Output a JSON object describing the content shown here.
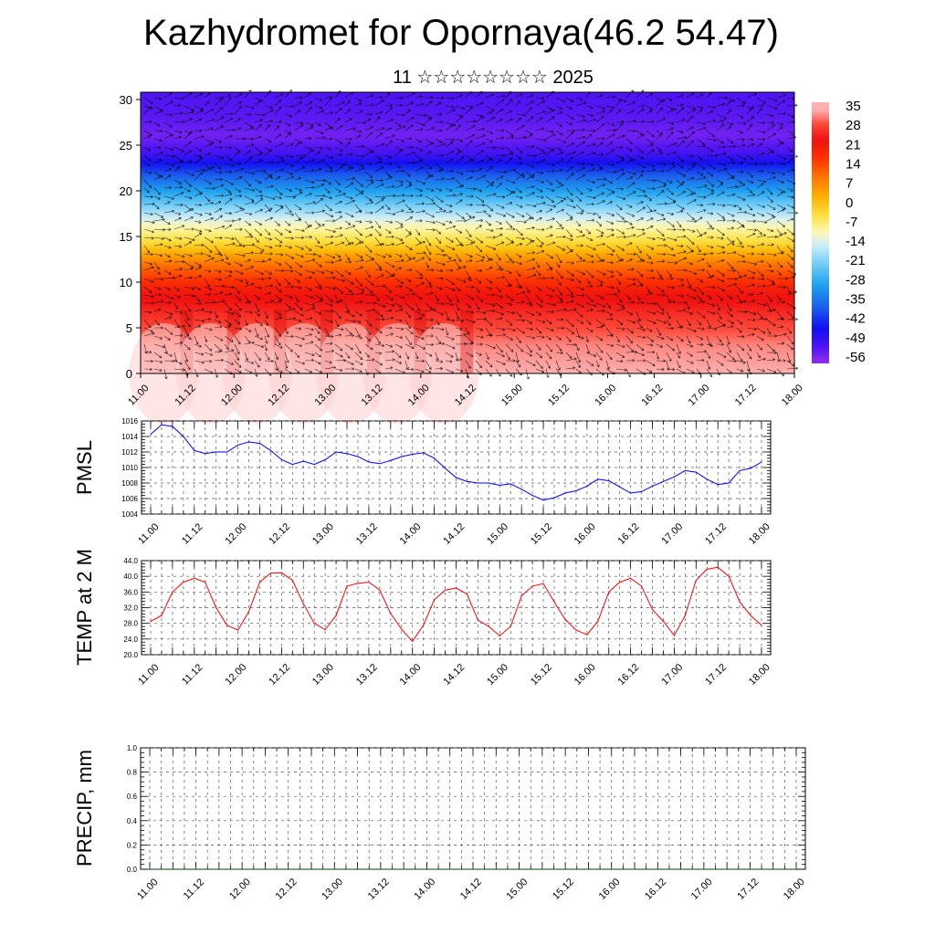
{
  "header": {
    "title": "Kazhydromet for Opornaya(46.2 54.47)",
    "subtitle": "11 ☆☆☆☆☆☆☆☆ 2025"
  },
  "colors": {
    "pmsl_line": "#0000ff",
    "temp_line": "#ff0000",
    "axis": "#000000"
  },
  "chart_data": [
    {
      "id": "cross-section",
      "type": "heatmap",
      "title": "",
      "x_ticks": [
        "11.00",
        "11.12",
        "12.00",
        "12.12",
        "13.00",
        "13.12",
        "14.00",
        "14.12",
        "15.00",
        "15.12",
        "16.00",
        "16.12",
        "17.00",
        "17.12",
        "18.00"
      ],
      "y_ticks": [
        0,
        5,
        10,
        15,
        20,
        25,
        30
      ],
      "ylim": [
        0,
        30.8
      ],
      "xlim": [
        0,
        14
      ],
      "layers": [
        {
          "z": 0,
          "t": 35
        },
        {
          "z": 3,
          "t": 33
        },
        {
          "z": 6,
          "t": 28
        },
        {
          "z": 9,
          "t": 22
        },
        {
          "z": 12,
          "t": 10
        },
        {
          "z": 14.5,
          "t": -4
        },
        {
          "z": 16.5,
          "t": -12
        },
        {
          "z": 18,
          "t": -20
        },
        {
          "z": 20,
          "t": -30
        },
        {
          "z": 22,
          "t": -40
        },
        {
          "z": 24,
          "t": -52
        },
        {
          "z": 26,
          "t": -56
        },
        {
          "z": 28,
          "t": -54
        },
        {
          "z": 30.8,
          "t": -53
        }
      ],
      "vectors": "wind arrows overlay",
      "colorbar": {
        "labels": [
          "35",
          "28",
          "21",
          "14",
          "7",
          "0",
          "-7",
          "-14",
          "-21",
          "-28",
          "-35",
          "-42",
          "-49",
          "-56"
        ],
        "stops": [
          {
            "v": 35,
            "color": "#ffb0b0"
          },
          {
            "v": 30,
            "color": "#ff4a3a"
          },
          {
            "v": 24,
            "color": "#ee1010"
          },
          {
            "v": 17,
            "color": "#ff3300"
          },
          {
            "v": 10,
            "color": "#ff7700"
          },
          {
            "v": 3,
            "color": "#ffb000"
          },
          {
            "v": -4,
            "color": "#ffe040"
          },
          {
            "v": -10,
            "color": "#fff8b0"
          },
          {
            "v": -15,
            "color": "#cfeefa"
          },
          {
            "v": -22,
            "color": "#73cef7"
          },
          {
            "v": -30,
            "color": "#1ea0ef"
          },
          {
            "v": -38,
            "color": "#1c60ec"
          },
          {
            "v": -46,
            "color": "#1010f0"
          },
          {
            "v": -53,
            "color": "#4d14f2"
          },
          {
            "v": -58,
            "color": "#8d2bf0"
          }
        ]
      }
    },
    {
      "id": "pmsl",
      "type": "line",
      "ylabel": "PMSL",
      "ylim": [
        1004,
        1016
      ],
      "y_ticks": [
        "1004",
        "1006",
        "1008",
        "1010",
        "1012",
        "1014",
        "1016"
      ],
      "x_ticks": [
        "11.00",
        "11.12",
        "12.00",
        "12.12",
        "13.00",
        "13.12",
        "14.00",
        "14.12",
        "15.00",
        "15.12",
        "16.00",
        "16.12",
        "17.00",
        "17.12",
        "18.00"
      ],
      "xlim": [
        0,
        14
      ],
      "series": [
        {
          "x": [
            0,
            0.25,
            0.5,
            0.75,
            1,
            1.25,
            1.5,
            1.75,
            2,
            2.25,
            2.5,
            2.75,
            3,
            3.25,
            3.5,
            3.75,
            4,
            4.25,
            4.5,
            4.75,
            5,
            5.25,
            5.5,
            5.75,
            6,
            6.25,
            6.5,
            6.75,
            7,
            7.25,
            7.5,
            7.75,
            8,
            8.25,
            8.5,
            8.75,
            9,
            9.25,
            9.5,
            9.75,
            10,
            10.25,
            10.5,
            10.75,
            11,
            11.25,
            11.5,
            11.75,
            12,
            12.25,
            12.5,
            12.75,
            13,
            13.25,
            13.5,
            13.75,
            14
          ],
          "values": [
            1014.3,
            1015.5,
            1015.3,
            1014.0,
            1012.2,
            1011.8,
            1012.0,
            1012.0,
            1012.9,
            1013.3,
            1013.1,
            1012.2,
            1011.0,
            1010.4,
            1010.8,
            1010.4,
            1011.0,
            1012.0,
            1011.8,
            1011.4,
            1010.7,
            1010.5,
            1010.9,
            1011.4,
            1011.7,
            1011.9,
            1011.2,
            1009.9,
            1008.7,
            1008.2,
            1008.0,
            1008.0,
            1007.7,
            1007.9,
            1007.2,
            1006.4,
            1005.8,
            1006.1,
            1006.7,
            1007.0,
            1007.6,
            1008.5,
            1008.3,
            1007.5,
            1006.7,
            1006.9,
            1007.6,
            1008.2,
            1008.8,
            1009.6,
            1009.4,
            1008.5,
            1007.8,
            1008.0,
            1009.6,
            1009.9,
            1010.7
          ]
        }
      ]
    },
    {
      "id": "temp2m",
      "type": "line",
      "ylabel": "TEMP at 2 M",
      "ylim": [
        20,
        44
      ],
      "y_ticks": [
        "20.0",
        "24.0",
        "28.0",
        "32.0",
        "36.0",
        "40.0",
        "44.0"
      ],
      "x_ticks": [
        "11.00",
        "11.12",
        "12.00",
        "12.12",
        "13.00",
        "13.12",
        "14.00",
        "14.12",
        "15.00",
        "15.12",
        "16.00",
        "16.12",
        "17.00",
        "17.12",
        "18.00"
      ],
      "xlim": [
        0,
        14
      ],
      "series": [
        {
          "x": [
            0,
            0.25,
            0.5,
            0.75,
            1,
            1.25,
            1.5,
            1.75,
            2,
            2.25,
            2.5,
            2.75,
            3,
            3.25,
            3.5,
            3.75,
            4,
            4.25,
            4.5,
            4.75,
            5,
            5.25,
            5.5,
            5.75,
            6,
            6.25,
            6.5,
            6.75,
            7,
            7.25,
            7.5,
            7.75,
            8,
            8.25,
            8.5,
            8.75,
            9,
            9.25,
            9.5,
            9.75,
            10,
            10.25,
            10.5,
            10.75,
            11,
            11.25,
            11.5,
            11.75,
            12,
            12.25,
            12.5,
            12.75,
            13,
            13.25,
            13.5,
            13.75,
            14
          ],
          "values": [
            28.5,
            30.0,
            36.0,
            38.5,
            39.5,
            38.5,
            32.0,
            27.5,
            26.3,
            31.0,
            38.5,
            40.8,
            40.9,
            39.0,
            33.0,
            28.0,
            26.4,
            30.0,
            37.5,
            38.2,
            38.5,
            36.5,
            30.5,
            26.5,
            23.4,
            27.5,
            34.0,
            36.5,
            37.0,
            35.5,
            28.8,
            27.2,
            24.8,
            27.2,
            35.0,
            37.5,
            38.1,
            33.5,
            29.0,
            26.3,
            25.1,
            28.5,
            36.0,
            38.5,
            39.5,
            37.5,
            31.5,
            28.5,
            24.9,
            30.0,
            39.0,
            41.8,
            42.3,
            40.0,
            33.5,
            30.0,
            27.5
          ]
        }
      ]
    },
    {
      "id": "precip",
      "type": "line",
      "ylabel": "PRECIP, mm",
      "ylim": [
        0,
        1
      ],
      "y_ticks": [
        "0.0",
        "0.2",
        "0.4",
        "0.6",
        "0.8",
        "1.0"
      ],
      "x_ticks": [
        "11.00",
        "11.12",
        "12.00",
        "12.12",
        "13.00",
        "13.12",
        "14.00",
        "14.12",
        "15.00",
        "15.12",
        "16.00",
        "16.12",
        "17.00",
        "17.12",
        "18.00"
      ],
      "xlim": [
        0,
        14
      ],
      "series": [
        {
          "x": [
            0,
            14
          ],
          "values": [
            0,
            0
          ]
        }
      ]
    }
  ]
}
